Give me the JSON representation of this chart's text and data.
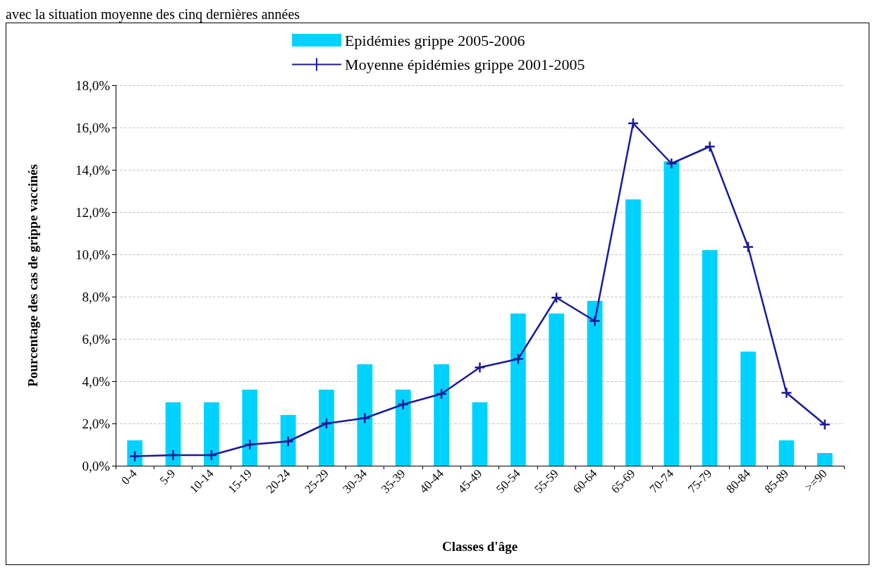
{
  "chart_data": {
    "type": "bar",
    "annotations": [
      "avec la situation moyenne des cinq dernières années"
    ],
    "xlabel": "Classes d'âge",
    "ylabel": "Pourcentage des cas de grippe vaccinés",
    "categories": [
      "0-4",
      "5-9",
      "10-14",
      "15-19",
      "20-24",
      "25-29",
      "30-34",
      "35-39",
      "40-44",
      "45-49",
      "50-54",
      "55-59",
      "60-64",
      "65-69",
      "70-74",
      "75-79",
      "80-84",
      "85-89",
      ">=90"
    ],
    "series": [
      {
        "name": "Epidémies grippe 2005-2006",
        "color": "#00d2ff",
        "values": [
          1.2,
          3.0,
          3.0,
          3.6,
          2.4,
          3.6,
          4.8,
          3.6,
          4.8,
          3.0,
          7.2,
          7.2,
          7.8,
          12.6,
          14.4,
          10.2,
          5.4,
          1.2,
          0.6
        ]
      },
      {
        "name": "Moyenne épidémies grippe 2001-2005",
        "type": "line",
        "color": "#1a1a99",
        "marker": "cross",
        "values": [
          0.45,
          0.5,
          0.5,
          1.0,
          1.15,
          2.0,
          2.25,
          2.9,
          3.4,
          4.65,
          5.05,
          7.95,
          6.85,
          16.2,
          14.3,
          15.1,
          10.35,
          3.45,
          1.95
        ]
      }
    ],
    "ylim": [
      0,
      18
    ],
    "yticks": [
      {
        "value": 0,
        "label": "0,0%"
      },
      {
        "value": 2,
        "label": "2,0%"
      },
      {
        "value": 4,
        "label": "4,0%"
      },
      {
        "value": 6,
        "label": "6,0%"
      },
      {
        "value": 8,
        "label": "8,0%"
      },
      {
        "value": 10,
        "label": "10,0%"
      },
      {
        "value": 12,
        "label": "12,0%"
      },
      {
        "value": 14,
        "label": "14,0%"
      },
      {
        "value": 16,
        "label": "16,0%"
      },
      {
        "value": 18,
        "label": "18,0%"
      }
    ],
    "grid": "y",
    "legend": "top"
  }
}
